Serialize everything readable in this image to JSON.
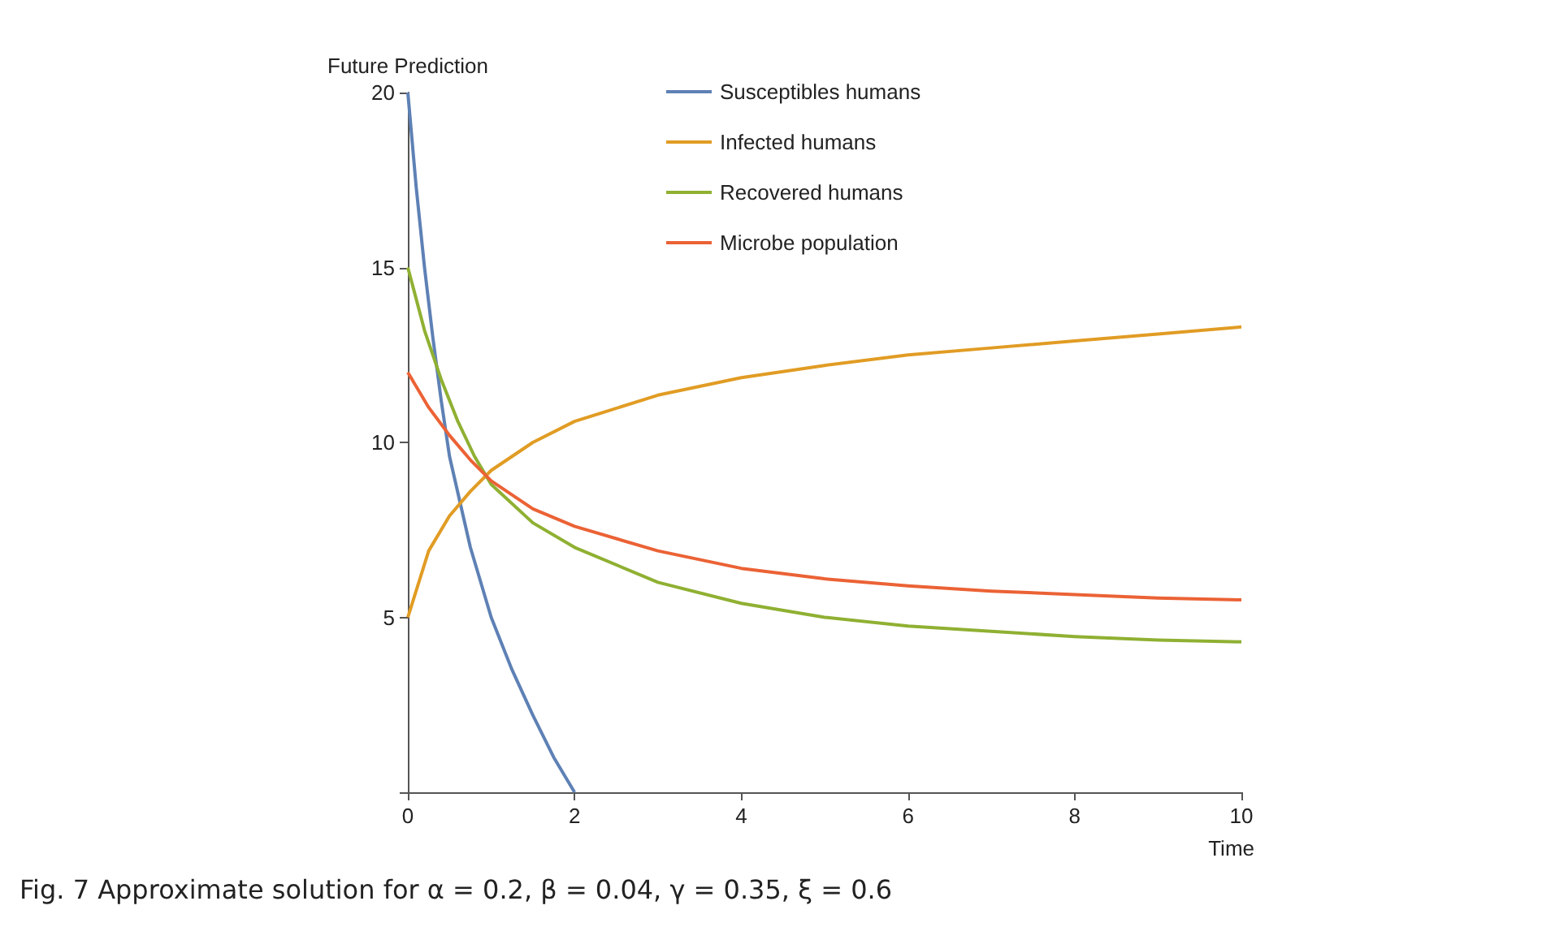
{
  "chart_data": {
    "type": "line",
    "ylabel": "Future Prediction",
    "xlabel": "Time",
    "annotations": [
      "Fig. 7 Approximate solution for α = 0.2, β = 0.04, γ = 0.35, ξ = 0.6"
    ],
    "xlim": [
      0,
      10
    ],
    "xticks": [
      0,
      2,
      4,
      6,
      8,
      10
    ],
    "ylim": [
      0,
      20
    ],
    "yticks": [
      {
        "value": 0,
        "label": null
      },
      5,
      10,
      15,
      20
    ],
    "grid": false,
    "legend": "top",
    "marker": "none",
    "line_style": "solid",
    "series": [
      {
        "name": "Susceptibles humans",
        "color": "#5e81b5",
        "x": [
          0,
          0.1,
          0.2,
          0.3,
          0.4,
          0.5,
          0.75,
          1,
          1.25,
          1.5,
          1.75,
          2
        ],
        "values": [
          20,
          17.3,
          15,
          13,
          11.2,
          9.6,
          7,
          5,
          3.5,
          2.2,
          1,
          0
        ]
      },
      {
        "name": "Infected humans",
        "color": "#e19c24",
        "x": [
          0,
          0.25,
          0.5,
          0.75,
          1,
          1.5,
          2,
          3,
          4,
          5,
          6,
          7,
          8,
          9,
          10
        ],
        "values": [
          5,
          6.9,
          7.9,
          8.6,
          9.2,
          10,
          10.6,
          11.35,
          11.85,
          12.2,
          12.5,
          12.7,
          12.9,
          13.1,
          13.3
        ]
      },
      {
        "name": "Recovered humans",
        "color": "#8fb032",
        "x": [
          0,
          0.2,
          0.4,
          0.6,
          0.8,
          1,
          1.5,
          2,
          3,
          4,
          5,
          6,
          7,
          8,
          9,
          10
        ],
        "values": [
          15,
          13.2,
          11.8,
          10.6,
          9.6,
          8.8,
          7.7,
          7,
          6,
          5.4,
          5,
          4.75,
          4.6,
          4.45,
          4.35,
          4.3
        ]
      },
      {
        "name": "Microbe population",
        "color": "#eb6235",
        "x": [
          0,
          0.25,
          0.5,
          0.75,
          1,
          1.5,
          2,
          3,
          4,
          5,
          6,
          7,
          8,
          9,
          10
        ],
        "values": [
          12,
          11,
          10.2,
          9.5,
          8.9,
          8.1,
          7.6,
          6.9,
          6.4,
          6.1,
          5.9,
          5.75,
          5.65,
          5.55,
          5.5
        ]
      }
    ]
  }
}
